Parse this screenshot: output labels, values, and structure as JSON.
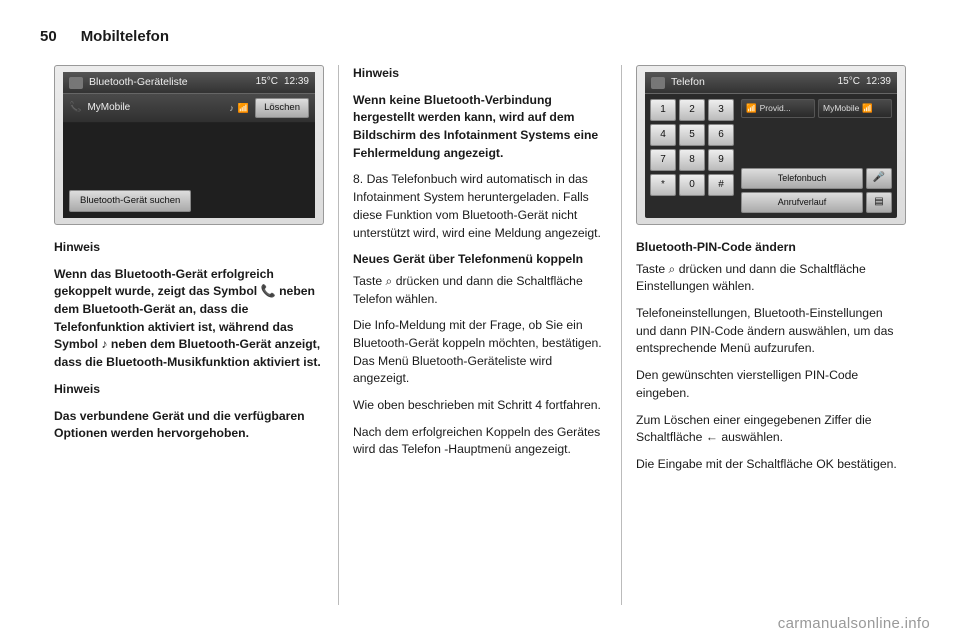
{
  "header": {
    "page_number": "50",
    "section": "Mobiltelefon"
  },
  "col1": {
    "screen": {
      "title": "Bluetooth-Geräteliste",
      "temp": "15°C",
      "time": "12:39",
      "device_name": "MyMobile",
      "delete_btn": "Löschen",
      "search_btn": "Bluetooth-Gerät suchen"
    },
    "h1": "Hinweis",
    "p1": "Wenn das Bluetooth-Gerät erfolgreich gekoppelt wurde, zeigt das Symbol 📞 neben dem Bluetooth-Gerät an, dass die Telefonfunktion aktiviert ist, während das Symbol ♪ neben dem Bluetooth-Gerät anzeigt, dass die Bluetooth-Musikfunktion aktiviert ist.",
    "h2": "Hinweis",
    "p2": "Das verbundene Gerät und die verfügbaren Optionen werden hervorgehoben."
  },
  "col2": {
    "h1": "Hinweis",
    "p1": "Wenn keine Bluetooth-Verbindung hergestellt werden kann, wird auf dem Bildschirm des Infotainment Systems eine Fehlermeldung angezeigt.",
    "p2_num": "8.",
    "p2": "Das Telefonbuch wird automatisch in das Infotainment System heruntergeladen. Falls diese Funktion vom Bluetooth-Gerät nicht unterstützt wird, wird eine Meldung angezeigt.",
    "h2": "Neues Gerät über Telefonmenü koppeln",
    "p3": "Taste ⌕ drücken und dann die Schaltfläche Telefon wählen.",
    "p4": "Die Info-Meldung mit der Frage, ob Sie ein Bluetooth-Gerät koppeln möchten, bestätigen. Das Menü Bluetooth-Geräteliste wird angezeigt.",
    "p5": "Wie oben beschrieben mit Schritt 4 fortfahren.",
    "p6": "Nach dem erfolgreichen Koppeln des Gerätes wird das Telefon -Hauptmenü angezeigt."
  },
  "col3": {
    "screen": {
      "title": "Telefon",
      "temp": "15°C",
      "time": "12:39",
      "provider": "Provid...",
      "device": "MyMobile",
      "phonebook_btn": "Telefonbuch",
      "history_btn": "Anrufverlauf",
      "keys": [
        "1",
        "2",
        "3",
        "4",
        "5",
        "6",
        "7",
        "8",
        "9",
        "*",
        "0",
        "#"
      ]
    },
    "h1": "Bluetooth-PIN-Code ändern",
    "p1": "Taste ⌕ drücken und dann die Schaltfläche Einstellungen wählen.",
    "p2": "Telefoneinstellungen, Bluetooth-Einstellungen und dann PIN-Code ändern auswählen, um das entsprechende Menü aufzurufen.",
    "p3": "Den gewünschten vierstelligen PIN-Code eingeben.",
    "p4": "Zum Löschen einer eingegebenen Ziffer die Schaltfläche ← auswählen.",
    "p5": "Die Eingabe mit der Schaltfläche OK bestätigen."
  },
  "watermark": "carmanualsonline.info"
}
